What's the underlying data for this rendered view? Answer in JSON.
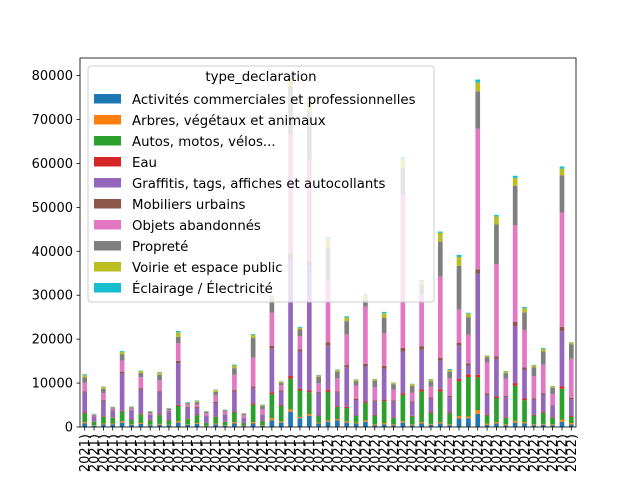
{
  "chart_data": {
    "type": "bar",
    "stacked": true,
    "legend": {
      "title": "type_declaration",
      "placement": "upper-left",
      "labels": [
        "Activités commerciales et professionnelles",
        "Arbres, végétaux et animaux",
        "Autos, motos, vélos...",
        "Eau",
        "Graffitis, tags, affiches et autocollants",
        "Mobiliers urbains",
        "Objets abandonnés",
        "Propreté",
        "Voirie et espace public",
        "Éclairage / Électricité"
      ]
    },
    "colors": [
      "#1f77b4",
      "#ff7f0e",
      "#2ca02c",
      "#d62728",
      "#9467bd",
      "#8c564b",
      "#e377c2",
      "#7f7f7f",
      "#bcbd22",
      "#17becf"
    ],
    "ylim": [
      0,
      84000
    ],
    "yticks": [
      0,
      10000,
      20000,
      30000,
      40000,
      50000,
      60000,
      70000,
      80000
    ],
    "ytick_labels": [
      "0",
      "10000",
      "20000",
      "30000",
      "40000",
      "50000",
      "60000",
      "70000",
      "80000"
    ],
    "categories": [
      "2021)",
      "2021)",
      "2021)",
      "2021)",
      "2021)",
      "2021)",
      "2021)",
      "2021)",
      "2021)",
      "2021)",
      "2021)",
      "2021)",
      "2021)",
      "2021)",
      "2021)",
      "2021)",
      "2021)",
      "2021)",
      "2021)",
      "2021)",
      "2021)",
      "2021)",
      "2021)",
      "2021)",
      "2021)",
      "2021)",
      "2022)",
      "2022)",
      "2022)",
      "2022)",
      "2022)",
      "2022)",
      "2022)",
      "2022)",
      "2022)",
      "2022)",
      "2022)",
      "2022)",
      "2022)",
      "2022)",
      "2022)",
      "2022)",
      "2022)",
      "2022)",
      "2022)",
      "2022)",
      "2022)",
      "2022)",
      "2022)",
      "2022)",
      "2022)",
      "2022)",
      "2022)"
    ],
    "series": [
      {
        "name": "Activités commerciales et professionnelles",
        "values": [
          800,
          300,
          600,
          600,
          1000,
          500,
          700,
          400,
          500,
          400,
          1000,
          500,
          700,
          200,
          600,
          300,
          800,
          200,
          800,
          300,
          1500,
          1000,
          3500,
          2000,
          2500,
          800,
          1200,
          1500,
          1000,
          800,
          1200,
          400,
          600,
          400,
          1000,
          400,
          800,
          500,
          800,
          400,
          2000,
          2000,
          3000,
          500,
          800,
          400,
          1000,
          800,
          400,
          500,
          400,
          1200,
          600
        ]
      },
      {
        "name": "Arbres, végétaux et animaux",
        "values": [
          300,
          100,
          200,
          200,
          300,
          100,
          200,
          100,
          200,
          100,
          300,
          100,
          200,
          100,
          200,
          100,
          300,
          100,
          300,
          100,
          500,
          300,
          500,
          300,
          400,
          200,
          300,
          300,
          300,
          200,
          300,
          200,
          300,
          200,
          300,
          200,
          300,
          200,
          300,
          200,
          500,
          400,
          800,
          300,
          300,
          200,
          400,
          300,
          200,
          200,
          200,
          500,
          300
        ]
      },
      {
        "name": "Autos, motos, vélos...",
        "values": [
          2000,
          800,
          1500,
          1300,
          2200,
          1000,
          2000,
          1000,
          2000,
          1000,
          3500,
          1200,
          1800,
          600,
          1500,
          800,
          2200,
          600,
          4000,
          1000,
          5500,
          3500,
          7000,
          6000,
          5000,
          1500,
          6500,
          2800,
          3000,
          1500,
          4000,
          2000,
          5000,
          1500,
          6000,
          1800,
          7000,
          2500,
          7000,
          2500,
          8000,
          9000,
          7500,
          1800,
          5500,
          1500,
          8000,
          5000,
          2000,
          2500,
          1500,
          7000,
          1400
        ]
      },
      {
        "name": "Eau",
        "values": [
          200,
          100,
          150,
          100,
          200,
          100,
          150,
          100,
          150,
          100,
          250,
          100,
          150,
          80,
          150,
          100,
          200,
          80,
          300,
          100,
          400,
          200,
          600,
          400,
          400,
          150,
          500,
          200,
          300,
          150,
          300,
          150,
          400,
          150,
          400,
          150,
          500,
          200,
          500,
          200,
          500,
          600,
          600,
          200,
          400,
          150,
          600,
          400,
          150,
          200,
          150,
          600,
          200
        ]
      },
      {
        "name": "Graffitis, tags, affiches et autocollants",
        "values": [
          4500,
          1000,
          3500,
          1500,
          8500,
          2000,
          5500,
          1200,
          5000,
          1800,
          9500,
          2500,
          1500,
          1500,
          3000,
          1500,
          4500,
          1000,
          3500,
          1300,
          10000,
          3000,
          27000,
          8500,
          28500,
          5000,
          10000,
          3000,
          9000,
          3500,
          8000,
          3000,
          7000,
          3500,
          9500,
          3000,
          9000,
          3000,
          6500,
          3500,
          7500,
          2000,
          23000,
          4500,
          8500,
          4500,
          13000,
          6500,
          3500,
          4000,
          2500,
          12500,
          3800
        ]
      },
      {
        "name": "Mobiliers urbains",
        "values": [
          300,
          100,
          250,
          150,
          400,
          150,
          300,
          100,
          300,
          150,
          500,
          150,
          200,
          100,
          250,
          100,
          400,
          100,
          350,
          100,
          600,
          300,
          1000,
          500,
          1000,
          300,
          800,
          300,
          500,
          300,
          600,
          300,
          600,
          300,
          800,
          300,
          800,
          300,
          600,
          300,
          700,
          500,
          1000,
          400,
          600,
          300,
          900,
          600,
          300,
          300,
          200,
          1000,
          300
        ]
      },
      {
        "name": "Objets abandonnés",
        "values": [
          2000,
          200,
          1500,
          300,
          2500,
          300,
          2500,
          300,
          2500,
          300,
          4000,
          600,
          600,
          600,
          1500,
          600,
          3500,
          600,
          6500,
          1100,
          7500,
          1200,
          27000,
          3000,
          23000,
          2000,
          14000,
          3000,
          7000,
          3000,
          13000,
          3000,
          7500,
          2500,
          35000,
          2000,
          12000,
          2500,
          18500,
          4000,
          7500,
          6500,
          32000,
          7000,
          21000,
          4000,
          22000,
          8500,
          5000,
          6500,
          2500,
          26000,
          9000
        ]
      },
      {
        "name": "Propreté",
        "values": [
          1200,
          200,
          1000,
          300,
          1500,
          300,
          1000,
          300,
          1200,
          300,
          1500,
          300,
          500,
          300,
          800,
          300,
          1500,
          300,
          4500,
          800,
          3000,
          500,
          11000,
          1500,
          11000,
          1500,
          7500,
          1500,
          3000,
          1000,
          1500,
          1500,
          3500,
          1200,
          6000,
          1500,
          2000,
          1200,
          8000,
          1500,
          10000,
          4000,
          8500,
          1200,
          9000,
          1200,
          9000,
          4000,
          2000,
          3000,
          1500,
          8500,
          3200
        ]
      },
      {
        "name": "Voirie et espace public",
        "values": [
          500,
          100,
          400,
          100,
          500,
          100,
          400,
          100,
          500,
          100,
          1000,
          100,
          300,
          100,
          400,
          100,
          600,
          100,
          700,
          200,
          600,
          300,
          2000,
          400,
          2800,
          300,
          2100,
          400,
          800,
          300,
          1200,
          300,
          1000,
          300,
          2000,
          400,
          800,
          400,
          2000,
          400,
          2000,
          800,
          2000,
          300,
          1800,
          400,
          1800,
          900,
          500,
          600,
          300,
          1500,
          400
        ]
      },
      {
        "name": "Éclairage / Électricité",
        "values": [
          200,
          100,
          100,
          50,
          200,
          100,
          100,
          50,
          150,
          100,
          300,
          100,
          100,
          50,
          100,
          50,
          200,
          50,
          200,
          100,
          300,
          100,
          500,
          200,
          500,
          100,
          400,
          100,
          300,
          100,
          200,
          100,
          300,
          100,
          500,
          100,
          300,
          100,
          300,
          200,
          500,
          200,
          700,
          100,
          400,
          100,
          500,
          300,
          100,
          200,
          100,
          500,
          100
        ]
      }
    ]
  }
}
